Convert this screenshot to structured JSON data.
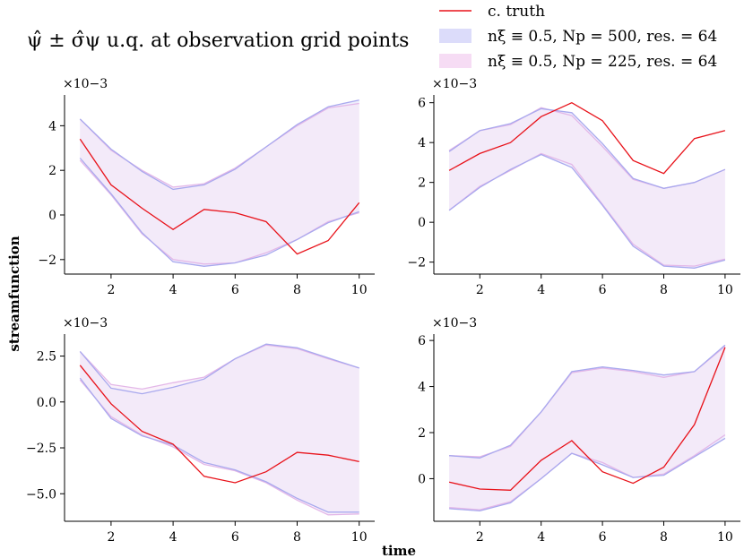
{
  "figure": {
    "title": "ψ̂ ± σ̂ψ u.q. at observation grid points",
    "xlabel": "time",
    "ylabel": "streamfunction"
  },
  "legend": [
    {
      "label": "c. truth",
      "kind": "line",
      "color": "#e8121a"
    },
    {
      "label": "nξ ≡ 0.5, Np = 500, res. = 64",
      "kind": "patch",
      "color": "#dcdcfa"
    },
    {
      "label": "nξ ≡ 0.5, Np = 225, res. = 64",
      "kind": "patch",
      "color": "#f6dcf4"
    }
  ],
  "colors": {
    "truth": "#e8121a",
    "band_500_fill": "#e8e8fb",
    "band_500_edge": "#a9a9ee",
    "band_225_fill": "#f6e8f6",
    "band_225_edge": "#e3b7e8"
  },
  "chart_data": [
    {
      "type": "line",
      "id": "tl",
      "scale_label": "×10−3",
      "x": [
        1,
        2,
        3,
        4,
        5,
        6,
        7,
        8,
        9,
        10
      ],
      "xticks": [
        2,
        4,
        6,
        8,
        10
      ],
      "xlim": [
        0.5,
        10.5
      ],
      "ylim": [
        -2.65,
        5.3
      ],
      "yticks": [
        -2,
        0,
        2,
        4
      ],
      "ytick_labels": [
        "−2",
        "0",
        "2",
        "4"
      ],
      "series": [
        {
          "name": "c. truth",
          "values": [
            3.4,
            1.35,
            0.3,
            -0.65,
            0.25,
            0.1,
            -0.3,
            -1.75,
            -1.15,
            0.55
          ]
        },
        {
          "name": "nξ ≡ 0.5, Np = 500, res. = 64 upper",
          "values": [
            4.3,
            2.95,
            1.95,
            1.15,
            1.35,
            2.05,
            3.05,
            4.05,
            4.85,
            5.15
          ]
        },
        {
          "name": "nξ ≡ 0.5, Np = 500, res. = 64 lower",
          "values": [
            2.55,
            0.95,
            -0.8,
            -2.1,
            -2.3,
            -2.15,
            -1.8,
            -1.1,
            -0.35,
            0.15
          ]
        },
        {
          "name": "nξ ≡ 0.5, Np = 225, res. = 64 upper",
          "values": [
            4.3,
            2.9,
            2.0,
            1.25,
            1.4,
            2.1,
            3.05,
            4.0,
            4.8,
            5.0
          ]
        },
        {
          "name": "nξ ≡ 0.5, Np = 225, res. = 64 lower",
          "values": [
            2.45,
            0.9,
            -0.85,
            -2.0,
            -2.2,
            -2.15,
            -1.7,
            -1.1,
            -0.3,
            0.1
          ]
        }
      ]
    },
    {
      "type": "line",
      "id": "tr",
      "scale_label": "×10−3",
      "x": [
        1,
        2,
        3,
        4,
        5,
        6,
        7,
        8,
        9,
        10
      ],
      "xticks": [
        2,
        4,
        6,
        8,
        10
      ],
      "xlim": [
        0.5,
        10.5
      ],
      "ylim": [
        -2.6,
        6.3
      ],
      "yticks": [
        -2,
        0,
        2,
        4,
        6
      ],
      "ytick_labels": [
        "−2",
        "0",
        "2",
        "4",
        "6"
      ],
      "series": [
        {
          "name": "c. truth",
          "values": [
            2.6,
            3.45,
            4.0,
            5.3,
            6.0,
            5.1,
            3.1,
            2.45,
            4.2,
            4.6
          ]
        },
        {
          "name": "nξ ≡ 0.5, Np = 500, res. = 64 upper",
          "values": [
            3.55,
            4.6,
            4.95,
            5.7,
            5.5,
            3.95,
            2.2,
            1.7,
            2.0,
            2.65
          ]
        },
        {
          "name": "nξ ≡ 0.5, Np = 500, res. = 64 lower",
          "values": [
            0.6,
            1.75,
            2.65,
            3.4,
            2.75,
            0.85,
            -1.2,
            -2.2,
            -2.3,
            -1.9
          ]
        },
        {
          "name": "nξ ≡ 0.5, Np = 225, res. = 64 upper",
          "values": [
            3.6,
            4.6,
            4.9,
            5.75,
            5.35,
            3.8,
            2.15,
            1.7,
            2.0,
            2.65
          ]
        },
        {
          "name": "nξ ≡ 0.5, Np = 225, res. = 64 lower",
          "values": [
            0.6,
            1.8,
            2.6,
            3.45,
            2.9,
            0.9,
            -1.1,
            -2.15,
            -2.2,
            -1.85
          ]
        }
      ]
    },
    {
      "type": "line",
      "id": "bl",
      "scale_label": "×10−3",
      "x": [
        1,
        2,
        3,
        4,
        5,
        6,
        7,
        8,
        9,
        10
      ],
      "xticks": [
        2,
        4,
        6,
        8,
        10
      ],
      "xlim": [
        0.5,
        10.5
      ],
      "ylim": [
        -6.5,
        3.6
      ],
      "yticks": [
        -5,
        -2.5,
        0,
        2.5
      ],
      "ytick_labels": [
        "−5.0",
        "−2.5",
        "0.0",
        "2.5"
      ],
      "series": [
        {
          "name": "c. truth",
          "values": [
            2.0,
            -0.1,
            -1.6,
            -2.3,
            -4.05,
            -4.4,
            -3.8,
            -2.75,
            -2.9,
            -3.25
          ]
        },
        {
          "name": "nξ ≡ 0.5, Np = 500, res. = 64 upper",
          "values": [
            2.75,
            0.75,
            0.45,
            0.8,
            1.25,
            2.35,
            3.15,
            2.95,
            2.4,
            1.85
          ]
        },
        {
          "name": "nξ ≡ 0.5, Np = 500, res. = 64 lower",
          "values": [
            1.3,
            -0.9,
            -1.85,
            -2.35,
            -3.3,
            -3.7,
            -4.35,
            -5.25,
            -6.0,
            -6.0
          ]
        },
        {
          "name": "nξ ≡ 0.5, Np = 225, res. = 64 upper",
          "values": [
            2.75,
            0.95,
            0.7,
            1.05,
            1.35,
            2.35,
            3.1,
            2.9,
            2.35,
            1.85
          ]
        },
        {
          "name": "nξ ≡ 0.5, Np = 225, res. = 64 lower",
          "values": [
            1.2,
            -0.8,
            -1.8,
            -2.45,
            -3.4,
            -3.75,
            -4.4,
            -5.35,
            -6.15,
            -6.1
          ]
        }
      ]
    },
    {
      "type": "line",
      "id": "br",
      "scale_label": "×10−3",
      "x": [
        1,
        2,
        3,
        4,
        5,
        6,
        7,
        8,
        9,
        10
      ],
      "xticks": [
        2,
        4,
        6,
        8,
        10
      ],
      "xlim": [
        0.5,
        10.5
      ],
      "ylim": [
        -1.85,
        6.2
      ],
      "yticks": [
        0,
        2,
        4,
        6
      ],
      "ytick_labels": [
        "0",
        "2",
        "4",
        "6"
      ],
      "series": [
        {
          "name": "c. truth",
          "values": [
            -0.15,
            -0.45,
            -0.5,
            0.8,
            1.65,
            0.3,
            -0.2,
            0.5,
            2.35,
            5.7
          ]
        },
        {
          "name": "nξ ≡ 0.5, Np = 500, res. = 64 upper",
          "values": [
            1.0,
            0.9,
            1.45,
            2.9,
            4.65,
            4.85,
            4.7,
            4.5,
            4.65,
            5.8
          ]
        },
        {
          "name": "nξ ≡ 0.5, Np = 500, res. = 64 lower",
          "values": [
            -1.3,
            -1.4,
            -1.05,
            0.0,
            1.1,
            0.6,
            0.05,
            0.15,
            0.95,
            1.75
          ]
        },
        {
          "name": "nξ ≡ 0.5, Np = 225, res. = 64 upper",
          "values": [
            1.0,
            0.95,
            1.4,
            2.9,
            4.6,
            4.8,
            4.65,
            4.4,
            4.65,
            5.75
          ]
        },
        {
          "name": "nξ ≡ 0.5, Np = 225, res. = 64 lower",
          "values": [
            -1.25,
            -1.35,
            -1.0,
            0.0,
            1.1,
            0.7,
            0.05,
            0.2,
            1.0,
            1.9
          ]
        }
      ]
    }
  ]
}
